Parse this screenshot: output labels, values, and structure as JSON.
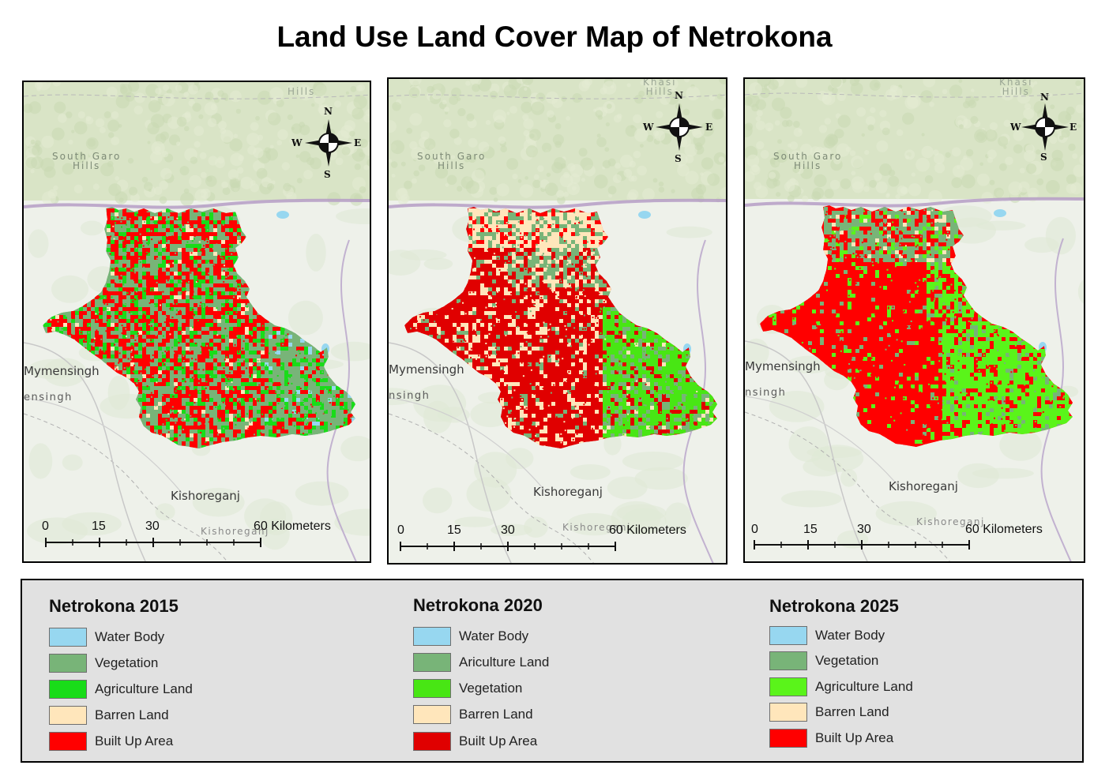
{
  "title": "Land Use Land Cover Map of Netrokona",
  "colors": {
    "water": "#97d7f0",
    "vegetation": "#78b478",
    "agri_2015": "#19dc19",
    "agri_2020": "#48e614",
    "agri_2025": "#5af41a",
    "barren": "#ffe6bb",
    "built": "#ff0000",
    "built_2020": "#e00000"
  },
  "maps": [
    {
      "year": "2015",
      "labels": {
        "hills_top": "Hills",
        "south_garo": "South Garo\nHills",
        "mymensingh": "Mymensingh",
        "mymensingh_faint": "ensingh",
        "kishoreganj": "Kishoreganj",
        "kishoreganj_faint": "Kishoreganj",
        "khasi": ""
      },
      "compass": {
        "n": "N",
        "s": "S",
        "e": "E",
        "w": "W"
      },
      "scale": {
        "ticks": [
          "0",
          "15",
          "30",
          "60 Kilometers"
        ]
      },
      "mix": {
        "built": 0.36,
        "veg": 0.42,
        "agri": 0.18,
        "barren": 0.04
      }
    },
    {
      "year": "2020",
      "labels": {
        "hills_top": "Khasi\nHills",
        "south_garo": "South Garo\nHills",
        "mymensingh": "Mymensingh",
        "mymensingh_faint": "nsingh",
        "kishoreganj": "Kishoreganj",
        "kishoreganj_faint": "Kishoreganj",
        "khasi": ""
      },
      "compass": {
        "n": "N",
        "s": "S",
        "e": "E",
        "w": "W"
      },
      "scale": {
        "ticks": [
          "0",
          "15",
          "30",
          "60 Kilometers"
        ]
      }
    },
    {
      "year": "2025",
      "labels": {
        "hills_top": "Khasi\nHills",
        "south_garo": "South Garo\nHills",
        "mymensingh": "Mymensingh",
        "mymensingh_faint": "nsingh",
        "kishoreganj": "Kishoreganj",
        "kishoreganj_faint": "Kishoreganj",
        "khasi": ""
      },
      "compass": {
        "n": "N",
        "s": "S",
        "e": "E",
        "w": "W"
      },
      "scale": {
        "ticks": [
          "0",
          "15",
          "30",
          "60 Kilometers"
        ]
      }
    }
  ],
  "legend": [
    {
      "title": "Netrokona 2015",
      "items": [
        {
          "label": "Water Body",
          "color": "#97d7f0"
        },
        {
          "label": "Vegetation",
          "color": "#78b478"
        },
        {
          "label": "Agriculture Land",
          "color": "#19dc19"
        },
        {
          "label": "Barren Land",
          "color": "#ffe6bb"
        },
        {
          "label": "Built Up Area",
          "color": "#ff0000"
        }
      ]
    },
    {
      "title": "Netrokona 2020",
      "items": [
        {
          "label": "Water Body",
          "color": "#97d7f0"
        },
        {
          "label": "Ariculture Land",
          "color": "#78b478"
        },
        {
          "label": "Vegetation",
          "color": "#48e614"
        },
        {
          "label": "Barren Land",
          "color": "#ffe6bb"
        },
        {
          "label": "Built Up Area",
          "color": "#e00000"
        }
      ]
    },
    {
      "title": "Netrokona 2025",
      "items": [
        {
          "label": "Water Body",
          "color": "#97d7f0"
        },
        {
          "label": "Vegetation",
          "color": "#78b478"
        },
        {
          "label": "Agriculture Land",
          "color": "#5af41a"
        },
        {
          "label": "Barren Land",
          "color": "#ffe6bb"
        },
        {
          "label": "Built Up Area",
          "color": "#ff0000"
        }
      ]
    }
  ]
}
